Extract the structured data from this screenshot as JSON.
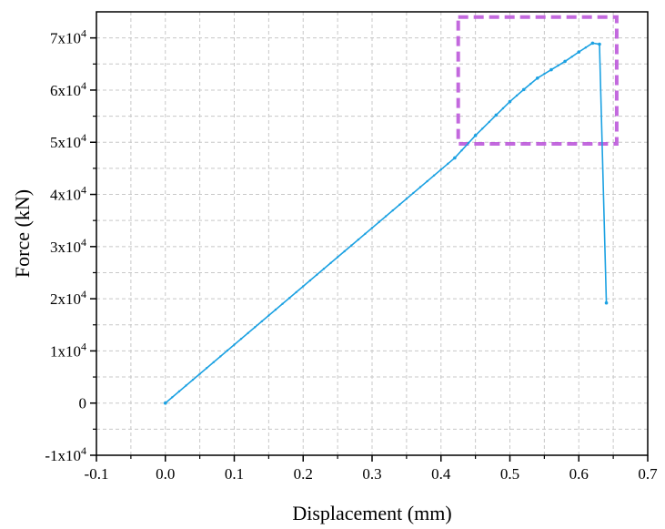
{
  "chart_data": {
    "type": "line",
    "xlabel": "Displacement (mm)",
    "ylabel": "Force (kN)",
    "xlim": [
      -0.1,
      0.7
    ],
    "ylim": [
      -10000,
      75000
    ],
    "grid": true,
    "x_ticks": [
      -0.1,
      0.0,
      0.1,
      0.2,
      0.3,
      0.4,
      0.5,
      0.6,
      0.7
    ],
    "x_tick_labels": [
      "-0.1",
      "0.0",
      "0.1",
      "0.2",
      "0.3",
      "0.4",
      "0.5",
      "0.6",
      "0.7"
    ],
    "y_ticks": [
      -10000,
      0,
      10000,
      20000,
      30000,
      40000,
      50000,
      60000,
      70000
    ],
    "y_tick_labels": [
      {
        "mantissa": "-1x10",
        "exp": "4"
      },
      {
        "mantissa": "0",
        "exp": ""
      },
      {
        "mantissa": "1x10",
        "exp": "4"
      },
      {
        "mantissa": "2x10",
        "exp": "4"
      },
      {
        "mantissa": "3x10",
        "exp": "4"
      },
      {
        "mantissa": "4x10",
        "exp": "4"
      },
      {
        "mantissa": "5x10",
        "exp": "4"
      },
      {
        "mantissa": "6x10",
        "exp": "4"
      },
      {
        "mantissa": "7x10",
        "exp": "4"
      }
    ],
    "series": [
      {
        "color": "#1ba1e2",
        "x": [
          0.0,
          0.42,
          0.45,
          0.48,
          0.5,
          0.52,
          0.54,
          0.56,
          0.58,
          0.6,
          0.62,
          0.63,
          0.64
        ],
        "y": [
          0,
          47000,
          51300,
          55200,
          57800,
          60100,
          62300,
          63900,
          65500,
          67300,
          69000,
          68800,
          19200
        ]
      }
    ],
    "highlight_box": {
      "x": [
        0.425,
        0.655
      ],
      "y": [
        49700,
        74000
      ],
      "color": "#b84fd8",
      "style": "dashed"
    }
  }
}
